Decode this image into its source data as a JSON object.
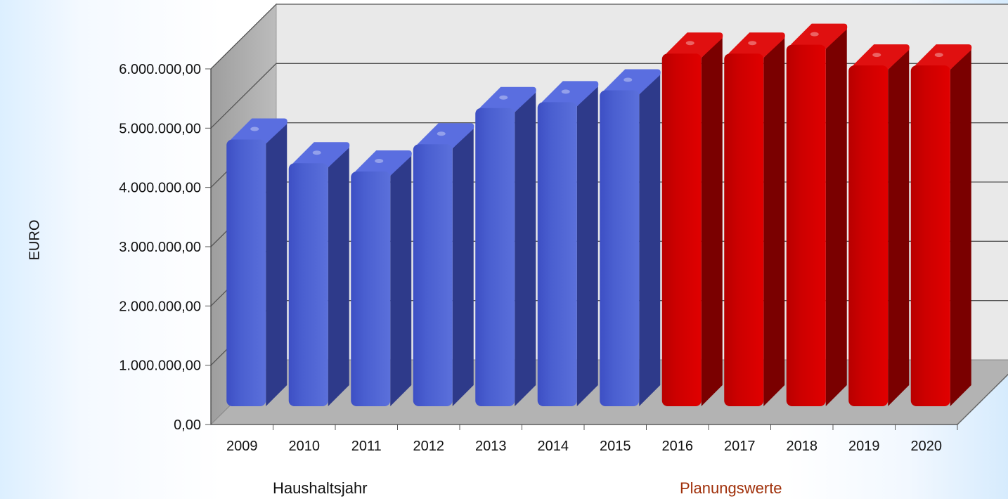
{
  "chart_data": {
    "type": "bar",
    "categories": [
      "2009",
      "2010",
      "2011",
      "2012",
      "2013",
      "2014",
      "2015",
      "2016",
      "2017",
      "2018",
      "2019",
      "2020"
    ],
    "values": [
      4500000,
      4100000,
      3960000,
      4420000,
      5030000,
      5130000,
      5330000,
      5950000,
      5950000,
      6100000,
      5750000,
      5750000
    ],
    "ylabel": "EURO",
    "xlabel": "Haushaltsjahr",
    "annotation": "Planungswerte",
    "ylim": [
      0,
      6000000
    ],
    "yticks": [
      0,
      1000000,
      2000000,
      3000000,
      4000000,
      5000000,
      6000000
    ],
    "ytick_labels": [
      "0,00",
      "1.000.000,00",
      "2.000.000,00",
      "3.000.000,00",
      "4.000.000,00",
      "5.000.000,00",
      "6.000.000,00"
    ],
    "grid": true,
    "actual_years_count": 7,
    "colors": {
      "actual": "#4a5fd0",
      "actual_side": "#2e3a8a",
      "planned": "#cc0000",
      "planned_side": "#7a0000",
      "annotation": "#a0300a"
    }
  }
}
